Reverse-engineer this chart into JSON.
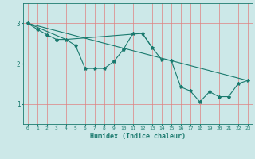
{
  "xlabel": "Humidex (Indice chaleur)",
  "ylabel": "",
  "bg_color": "#cce8e8",
  "line_color": "#1a7a6e",
  "grid_color": "#e08080",
  "xlim": [
    -0.5,
    23.5
  ],
  "ylim": [
    0.5,
    3.5
  ],
  "yticks": [
    1,
    2,
    3
  ],
  "xticks": [
    0,
    1,
    2,
    3,
    4,
    5,
    6,
    7,
    8,
    9,
    10,
    11,
    12,
    13,
    14,
    15,
    16,
    17,
    18,
    19,
    20,
    21,
    22,
    23
  ],
  "series1_x": [
    0,
    1,
    2,
    3,
    4,
    5,
    6,
    7,
    8,
    9,
    10,
    11,
    12,
    13,
    14,
    15,
    16,
    17,
    18,
    19,
    20,
    21,
    22,
    23
  ],
  "series1_y": [
    3.0,
    2.85,
    2.72,
    2.6,
    2.6,
    2.45,
    1.88,
    1.88,
    1.88,
    2.05,
    2.35,
    2.75,
    2.75,
    2.4,
    2.1,
    2.08,
    1.42,
    1.32,
    1.05,
    1.3,
    1.18,
    1.18,
    1.5,
    1.58
  ],
  "series2_x": [
    0,
    23
  ],
  "series2_y": [
    3.0,
    1.58
  ],
  "series3_x": [
    0,
    4,
    12,
    13
  ],
  "series3_y": [
    3.0,
    2.6,
    2.75,
    2.4
  ]
}
